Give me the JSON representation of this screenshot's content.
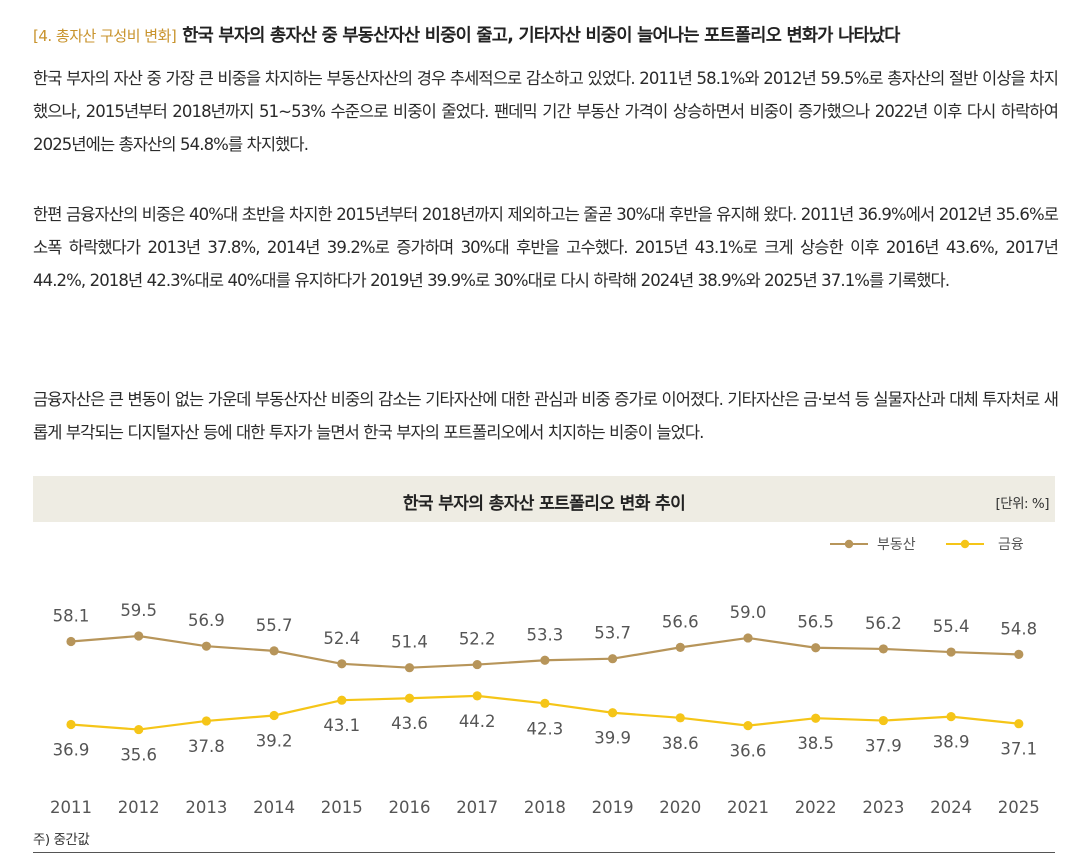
{
  "headline": {
    "tag": "[4. 총자산 구성비 변화]",
    "text": "한국 부자의 총자산 중 부동산자산 비중이 줄고, 기타자산 비중이 늘어나는 포트폴리오 변화가 나타났다"
  },
  "paragraphs": [
    "한국 부자의 자산 중 가장 큰 비중을 차지하는 부동산자산의 경우 추세적으로 감소하고 있었다. 2011년 58.1%와 2012년 59.5%로 총자산의 절반 이상을 차지했으나, 2015년부터 2018년까지 51~53% 수준으로 비중이 줄었다. 팬데믹 기간 부동산 가격이 상승하면서 비중이 증가했으나 2022년 이후 다시 하락하여 2025년에는 총자산의 54.8%를 차지했다.",
    "한편 금융자산의 비중은 40%대 초반을 차지한 2015년부터 2018년까지 제외하고는 줄곧 30%대 후반을 유지해 왔다. 2011년 36.9%에서 2012년 35.6%로 소폭 하락했다가 2013년 37.8%, 2014년 39.2%로 증가하며 30%대 후반을 고수했다. 2015년 43.1%로 크게 상승한 이후 2016년 43.6%, 2017년 44.2%, 2018년 42.3%대로 40%대를 유지하다가 2019년 39.9%로 30%대로 다시 하락해 2024년 38.9%와 2025년 37.1%를 기록했다.",
    "금융자산은 큰 변동이 없는 가운데 부동산자산 비중의 감소는 기타자산에 대한 관심과 비중 증가로 이어졌다. 기타자산은 금·보석 등 실물자산과 대체 투자처로 새롭게 부각되는 디지털자산 등에 대한 투자가 늘면서 한국 부자의 포트폴리오에서 치지하는 비중이 늘었다."
  ],
  "chart_data": {
    "type": "line",
    "title": "한국 부자의 총자산 포트폴리오 변화 추이",
    "unit": "[단위: %]",
    "x": [
      "2011",
      "2012",
      "2013",
      "2014",
      "2015",
      "2016",
      "2017",
      "2018",
      "2019",
      "2020",
      "2021",
      "2022",
      "2023",
      "2024",
      "2025"
    ],
    "series": [
      {
        "name": "부동산",
        "color": "#b7955a",
        "values": [
          58.1,
          59.5,
          56.9,
          55.7,
          52.4,
          51.4,
          52.2,
          53.3,
          53.7,
          56.6,
          59.0,
          56.5,
          56.2,
          55.4,
          54.8
        ]
      },
      {
        "name": "금융",
        "color": "#f5c518",
        "values": [
          36.9,
          35.6,
          37.8,
          39.2,
          43.1,
          43.6,
          44.2,
          42.3,
          39.9,
          38.6,
          36.6,
          38.5,
          37.9,
          38.9,
          37.1
        ]
      }
    ],
    "note": "주) 중간값",
    "legend_position": "top-right"
  }
}
